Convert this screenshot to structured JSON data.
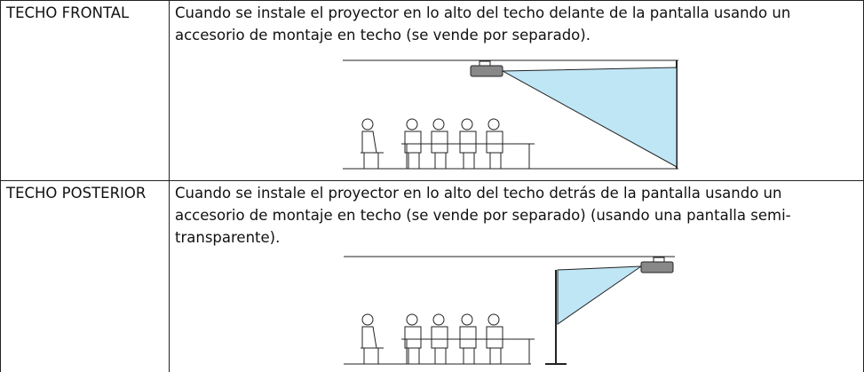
{
  "table": {
    "rows": [
      [
        "TECHO FRONTAL",
        "Cuando se instale el proyector en lo alto del techo delante de la pantalla usando un accesorio de montaje en techo (se vende por separado)."
      ],
      [
        "TECHO POSTERIOR",
        "Cuando se instale el proyector en lo alto del techo detrás de la pantalla usando un accesorio de montaje en techo (se vende por separado) (usando una pantalla semi-transparente)."
      ]
    ]
  }
}
